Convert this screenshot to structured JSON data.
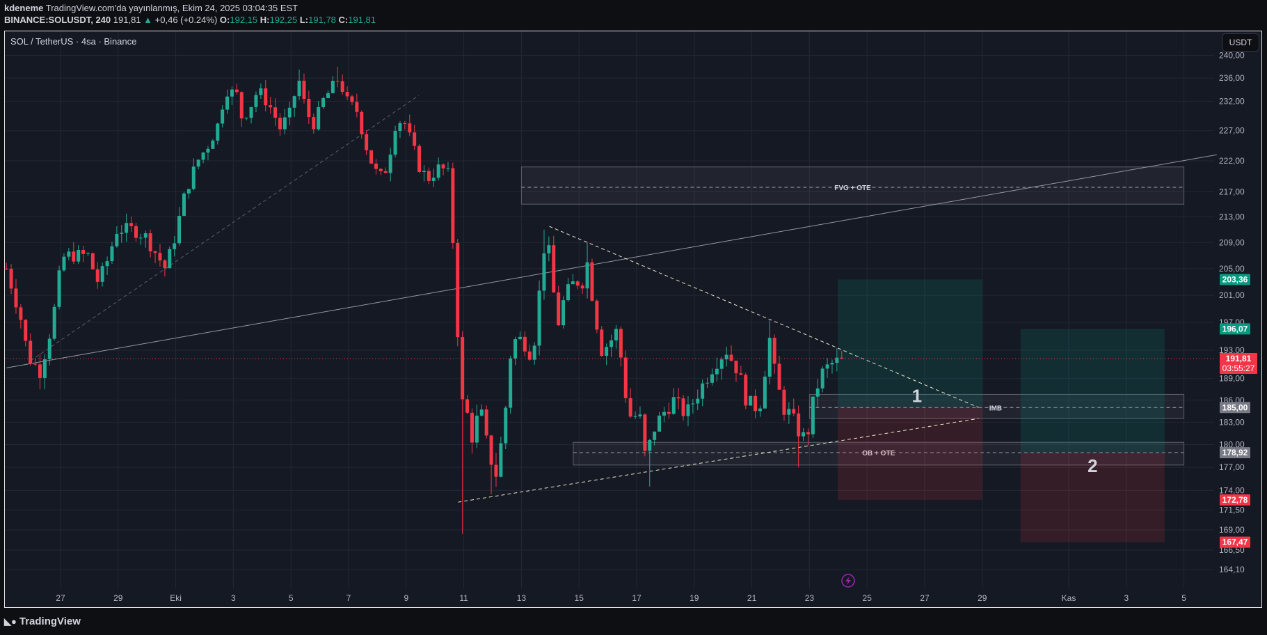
{
  "header": {
    "author": "kdeneme",
    "published": "TradingView.com'da yayınlanmış, Ekim 24, 2025 03:04:35 EST",
    "symbol": "BINANCE:SOLUSDT, 240",
    "last": "191,81",
    "change": "+0,46 (+0.24%)",
    "o_label": "O:",
    "o": "192,15",
    "h_label": "H:",
    "h": "192,25",
    "l_label": "L:",
    "l": "191,78",
    "c_label": "C:",
    "c": "191,81"
  },
  "legend": "SOL / TetherUS · 4sa · Binance",
  "currency_button": "USDT",
  "brand": "TradingView",
  "colors": {
    "up": "#22ab94",
    "down": "#f23645",
    "bg": "#151924",
    "grid": "#232734"
  },
  "chart_data": {
    "type": "candlestick",
    "title": "SOL / TetherUS · 4sa · Binance",
    "interval_hours": 4,
    "scale": "log",
    "ylim": [
      162,
      241
    ],
    "xlim_days": [
      0,
      42.5
    ],
    "x_origin": "2025-09-25",
    "y_ticks": [
      "240,00",
      "236,00",
      "232,00",
      "227,00",
      "222,00",
      "217,00",
      "213,00",
      "209,00",
      "205,00",
      "201,00",
      "197,00",
      "193,00",
      "189,00",
      "186,00",
      "183,00",
      "180,00",
      "177,00",
      "174,00",
      "171,50",
      "169,00",
      "166,50",
      "164,10"
    ],
    "x_ticks": [
      {
        "day": 2,
        "label": "27"
      },
      {
        "day": 4,
        "label": "29"
      },
      {
        "day": 6,
        "label": "Eki"
      },
      {
        "day": 8,
        "label": "3"
      },
      {
        "day": 10,
        "label": "5"
      },
      {
        "day": 12,
        "label": "7"
      },
      {
        "day": 14,
        "label": "9"
      },
      {
        "day": 16,
        "label": "11"
      },
      {
        "day": 18,
        "label": "13"
      },
      {
        "day": 20,
        "label": "15"
      },
      {
        "day": 22,
        "label": "17"
      },
      {
        "day": 24,
        "label": "19"
      },
      {
        "day": 26,
        "label": "21"
      },
      {
        "day": 28,
        "label": "23"
      },
      {
        "day": 30,
        "label": "25"
      },
      {
        "day": 32,
        "label": "27"
      },
      {
        "day": 34,
        "label": "29"
      },
      {
        "day": 37,
        "label": "Kas"
      },
      {
        "day": 39,
        "label": "3"
      },
      {
        "day": 41,
        "label": "5"
      }
    ],
    "price_path": [
      [
        0.12,
        205
      ],
      [
        0.6,
        198
      ],
      [
        0.88,
        192
      ],
      [
        1.3,
        190
      ],
      [
        1.72,
        197
      ],
      [
        2,
        205
      ],
      [
        2.14,
        207
      ],
      [
        2.98,
        207
      ],
      [
        3.26,
        203
      ],
      [
        3.54,
        205
      ],
      [
        3.96,
        211
      ],
      [
        4.52,
        211
      ],
      [
        4.94,
        210
      ],
      [
        5.36,
        207
      ],
      [
        5.64,
        205
      ],
      [
        5.92,
        209
      ],
      [
        6.34,
        217
      ],
      [
        6.76,
        222
      ],
      [
        7.18,
        225
      ],
      [
        7.46,
        228
      ],
      [
        7.74,
        234
      ],
      [
        8.16,
        233
      ],
      [
        8.3,
        229
      ],
      [
        8.58,
        231
      ],
      [
        8.86,
        234
      ],
      [
        9.42,
        230
      ],
      [
        9.56,
        227
      ],
      [
        9.98,
        230
      ],
      [
        10.26,
        236
      ],
      [
        10.54,
        230
      ],
      [
        10.82,
        228
      ],
      [
        11.1,
        232
      ],
      [
        11.38,
        234
      ],
      [
        11.66,
        236
      ],
      [
        11.94,
        232
      ],
      [
        12.36,
        230
      ],
      [
        12.5,
        226
      ],
      [
        12.78,
        222
      ],
      [
        13.06,
        219
      ],
      [
        13.34,
        221
      ],
      [
        13.62,
        228
      ],
      [
        13.9,
        229
      ],
      [
        14.18,
        225
      ],
      [
        14.46,
        221
      ],
      [
        14.74,
        219
      ],
      [
        15.17,
        221
      ],
      [
        15.45,
        220
      ],
      [
        15.59,
        211
      ],
      [
        15.73,
        203
      ],
      [
        15.87,
        185
      ],
      [
        16.01,
        186
      ],
      [
        16.29,
        181
      ],
      [
        16.57,
        185
      ],
      [
        16.85,
        179
      ],
      [
        17.13,
        176
      ],
      [
        17.41,
        183
      ],
      [
        17.6,
        192
      ],
      [
        17.83,
        195
      ],
      [
        18.11,
        194
      ],
      [
        18.39,
        192
      ],
      [
        18.81,
        209
      ],
      [
        19,
        207
      ],
      [
        19.23,
        196
      ],
      [
        19.51,
        201
      ],
      [
        19.84,
        203
      ],
      [
        20.2,
        203
      ],
      [
        20.29,
        206
      ],
      [
        20.49,
        200
      ],
      [
        20.77,
        193
      ],
      [
        21.05,
        194
      ],
      [
        21.33,
        196
      ],
      [
        21.61,
        187
      ],
      [
        21.89,
        182
      ],
      [
        22.03,
        186
      ],
      [
        22.31,
        178
      ],
      [
        22.59,
        182
      ],
      [
        22.87,
        184
      ],
      [
        23.29,
        186
      ],
      [
        23.71,
        184
      ],
      [
        23.99,
        186
      ],
      [
        24.41,
        189
      ],
      [
        24.69,
        191
      ],
      [
        25.11,
        193
      ],
      [
        25.53,
        190
      ],
      [
        25.81,
        186
      ],
      [
        26.09,
        185
      ],
      [
        26.37,
        186
      ],
      [
        26.57,
        196
      ],
      [
        26.79,
        190
      ],
      [
        27.07,
        185
      ],
      [
        27.35,
        184
      ],
      [
        27.72,
        181
      ],
      [
        27.91,
        181
      ],
      [
        28.19,
        187
      ],
      [
        28.47,
        190
      ],
      [
        28.75,
        191
      ],
      [
        29.17,
        191.81
      ]
    ],
    "wick_extremes": [
      [
        10.3,
        237.5
      ],
      [
        11.6,
        238
      ],
      [
        15.9,
        168.5
      ],
      [
        16.9,
        173.5
      ],
      [
        18.8,
        211
      ],
      [
        20.3,
        209
      ],
      [
        22.4,
        174.5
      ],
      [
        26.6,
        197.5
      ],
      [
        27.6,
        177
      ]
    ],
    "last_price": {
      "value": 191.81,
      "label": "191,81",
      "countdown": "03:55:27"
    },
    "price_labels": [
      {
        "value": 203.36,
        "label": "203,36",
        "color": "#089981"
      },
      {
        "value": 196.07,
        "label": "196,07",
        "color": "#089981"
      },
      {
        "value": 185.0,
        "label": "185,00",
        "color": "#787b86"
      },
      {
        "value": 178.92,
        "label": "178,92",
        "color": "#787b86"
      },
      {
        "value": 172.78,
        "label": "172,78",
        "color": "#f23645"
      },
      {
        "value": 167.47,
        "label": "167,47",
        "color": "#f23645"
      }
    ],
    "zones": [
      {
        "label": "FVG + OTE",
        "from": 18.0,
        "to": 41.0,
        "top": 221,
        "bottom": 215,
        "mid": 217.7
      },
      {
        "label": "IMB",
        "from": 28.0,
        "to": 41.0,
        "top": 186.8,
        "bottom": 183.5,
        "mid": 185.0
      },
      {
        "label": "OB + OTE",
        "from": 19.8,
        "to": 41.0,
        "top": 180.3,
        "bottom": 177.3,
        "mid": 178.92
      }
    ],
    "positions": [
      {
        "label": "1",
        "from": 28.98,
        "to": 34.0,
        "target": 203.36,
        "entry": 185.0,
        "stop": 172.78
      },
      {
        "label": "2",
        "from": 35.33,
        "to": 40.33,
        "target": 196.07,
        "entry": 178.92,
        "stop": 167.47
      }
    ],
    "trendlines": [
      {
        "name": "long-gray-line",
        "p1": [
          0.12,
          190.5
        ],
        "p2": [
          42.14,
          223
        ],
        "dash": false,
        "color": "#9598a1"
      },
      {
        "name": "gray-dashed-support",
        "p1": [
          0.96,
          191.5
        ],
        "p2": [
          14.44,
          233
        ],
        "dash": true,
        "color": "#5d606b"
      },
      {
        "name": "descending-dashed-line",
        "p1": [
          18.97,
          211.5
        ],
        "p2": [
          33.87,
          185
        ],
        "dash": true,
        "color": "#e8e8c8"
      },
      {
        "name": "ascending-dashed-line",
        "p1": [
          15.8,
          172.5
        ],
        "p2": [
          33.87,
          183.5
        ],
        "dash": true,
        "color": "#e8e8c8"
      }
    ]
  }
}
